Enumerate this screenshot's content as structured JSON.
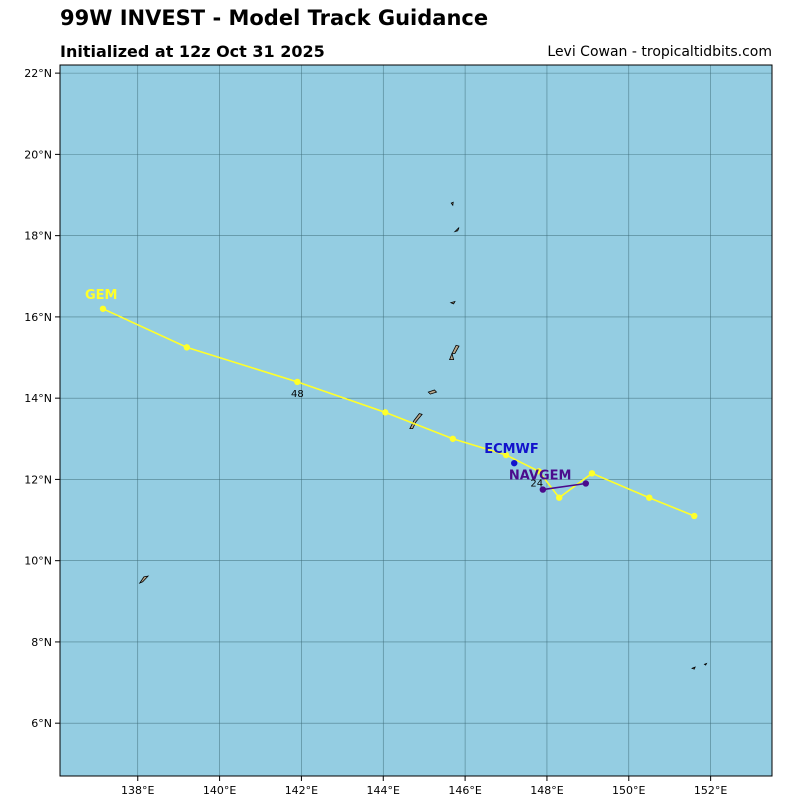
{
  "header": {
    "title": "99W INVEST - Model Track Guidance",
    "subtitle": "Initialized at 12z Oct 31 2025",
    "credit": "Levi Cowan - tropicaltidbits.com"
  },
  "colors": {
    "ocean": "#94cde2",
    "land": "#b9a88c",
    "grid": "#3d6b78",
    "gem": "#ffff2a",
    "ecmwf": "#1212cc",
    "navgem": "#4b0b8c"
  },
  "chart_data": {
    "type": "line",
    "projection": "lat-lon map",
    "grid": true,
    "xlim": [
      136.1,
      153.5
    ],
    "ylim": [
      4.7,
      22.2
    ],
    "x_ticks": [
      138,
      140,
      142,
      144,
      146,
      148,
      150,
      152
    ],
    "y_ticks": [
      6,
      8,
      10,
      12,
      14,
      16,
      18,
      20,
      22
    ],
    "x_tick_labels": [
      "138°E",
      "140°E",
      "142°E",
      "144°E",
      "146°E",
      "148°E",
      "150°E",
      "152°E"
    ],
    "y_tick_labels": [
      "6°N",
      "8°N",
      "10°N",
      "12°N",
      "14°N",
      "16°N",
      "18°N",
      "20°N",
      "22°N"
    ],
    "series": [
      {
        "name": "GEM",
        "color": "#ffff2a",
        "points": [
          [
            151.6,
            11.1
          ],
          [
            150.5,
            11.55
          ],
          [
            149.1,
            12.15
          ],
          [
            148.3,
            11.55
          ],
          [
            147.8,
            12.2
          ],
          [
            147.0,
            12.6
          ],
          [
            145.7,
            13.0
          ],
          [
            144.05,
            13.65
          ],
          [
            141.9,
            14.4
          ],
          [
            139.2,
            15.25
          ],
          [
            137.15,
            16.2
          ]
        ]
      },
      {
        "name": "ECMWF",
        "color": "#1212cc",
        "points": [
          [
            147.2,
            12.4
          ]
        ]
      },
      {
        "name": "NAVGEM",
        "color": "#4b0b8c",
        "points": [
          [
            148.95,
            11.9
          ],
          [
            147.9,
            11.75
          ]
        ]
      }
    ],
    "annotations": [
      {
        "text": "48",
        "lon": 141.9,
        "lat": 14.15
      },
      {
        "text": "24",
        "lon": 147.75,
        "lat": 11.95
      }
    ],
    "islands": [
      [
        [
          144.65,
          13.25
        ],
        [
          144.75,
          13.45
        ],
        [
          144.88,
          13.62
        ],
        [
          144.95,
          13.6
        ],
        [
          144.8,
          13.42
        ],
        [
          144.72,
          13.25
        ]
      ],
      [
        [
          145.1,
          14.15
        ],
        [
          145.25,
          14.2
        ],
        [
          145.3,
          14.15
        ],
        [
          145.15,
          14.1
        ]
      ],
      [
        [
          145.62,
          14.95
        ],
        [
          145.68,
          15.1
        ],
        [
          145.72,
          14.95
        ]
      ],
      [
        [
          145.68,
          15.1
        ],
        [
          145.78,
          15.3
        ],
        [
          145.85,
          15.28
        ],
        [
          145.75,
          15.1
        ]
      ],
      [
        [
          145.65,
          16.35
        ],
        [
          145.75,
          16.38
        ],
        [
          145.72,
          16.32
        ]
      ],
      [
        [
          145.75,
          18.1
        ],
        [
          145.85,
          18.2
        ],
        [
          145.82,
          18.12
        ]
      ],
      [
        [
          145.66,
          18.8
        ],
        [
          145.71,
          18.82
        ],
        [
          145.7,
          18.75
        ]
      ],
      [
        [
          138.05,
          9.45
        ],
        [
          138.15,
          9.6
        ],
        [
          138.25,
          9.62
        ],
        [
          138.12,
          9.48
        ]
      ],
      [
        [
          151.55,
          7.35
        ],
        [
          151.62,
          7.38
        ],
        [
          151.6,
          7.33
        ]
      ],
      [
        [
          151.85,
          7.45
        ],
        [
          151.9,
          7.47
        ],
        [
          151.88,
          7.43
        ]
      ]
    ]
  }
}
